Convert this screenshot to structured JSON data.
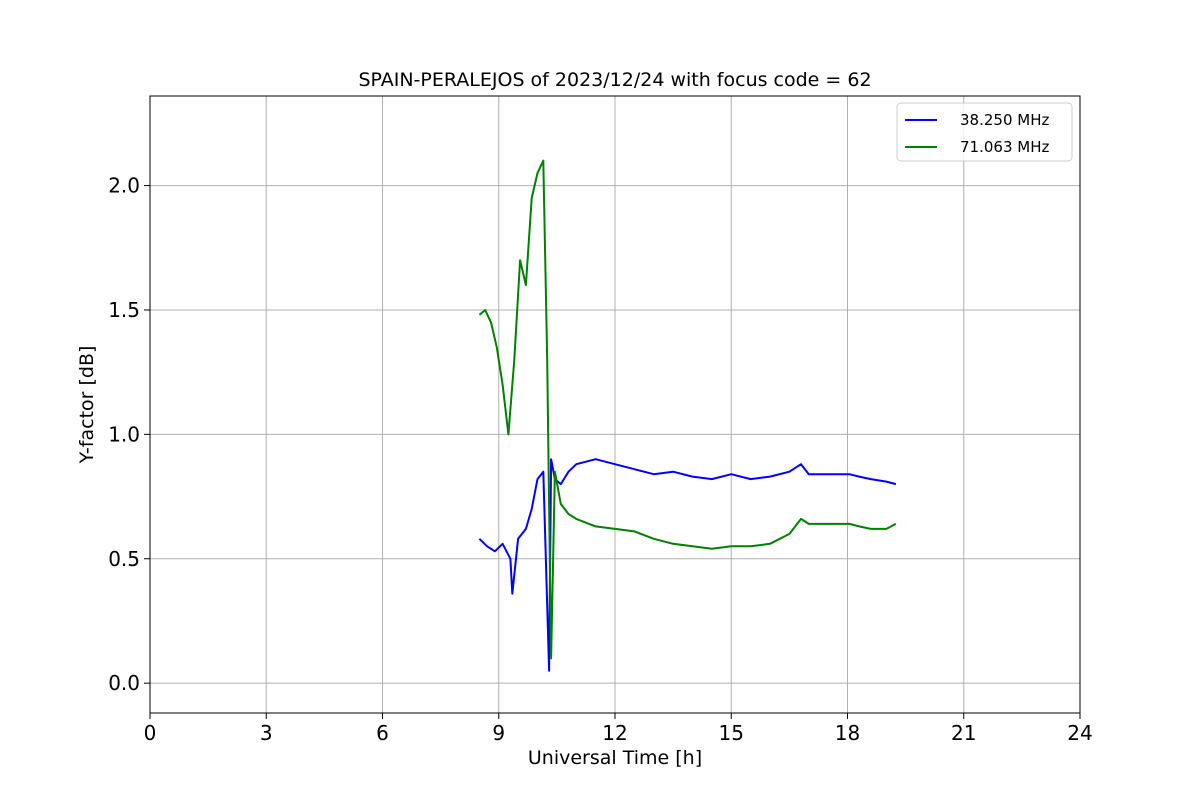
{
  "chart_data": {
    "type": "line",
    "title": "SPAIN-PERALEJOS of 2023/12/24 with focus code = 62",
    "xlabel": "Universal Time [h]",
    "ylabel": "Y-factor [dB]",
    "xlim": [
      0,
      24
    ],
    "ylim": [
      -0.12,
      2.36
    ],
    "xticks": [
      0,
      3,
      6,
      9,
      12,
      15,
      18,
      21,
      24
    ],
    "yticks": [
      0.0,
      0.5,
      1.0,
      1.5,
      2.0
    ],
    "xtick_labels": [
      "0",
      "3",
      "6",
      "9",
      "12",
      "15",
      "18",
      "21",
      "24"
    ],
    "ytick_labels": [
      "0.0",
      "0.5",
      "1.0",
      "1.5",
      "2.0"
    ],
    "grid": true,
    "legend_position": "top-right",
    "series": [
      {
        "name": "38.250 MHz",
        "color": "#0000ff",
        "x": [
          8.5,
          8.7,
          8.9,
          9.1,
          9.3,
          9.35,
          9.5,
          9.7,
          9.85,
          10.0,
          10.15,
          10.3,
          10.35,
          10.45,
          10.6,
          10.8,
          11.0,
          11.5,
          12.0,
          12.5,
          13.0,
          13.5,
          14.0,
          14.5,
          15.0,
          15.5,
          16.0,
          16.5,
          16.8,
          17.0,
          18.05,
          18.3,
          18.6,
          19.0,
          19.25
        ],
        "y": [
          0.58,
          0.55,
          0.53,
          0.56,
          0.5,
          0.36,
          0.58,
          0.62,
          0.7,
          0.82,
          0.85,
          0.05,
          0.9,
          0.82,
          0.8,
          0.85,
          0.88,
          0.9,
          0.88,
          0.86,
          0.84,
          0.85,
          0.83,
          0.82,
          0.84,
          0.82,
          0.83,
          0.85,
          0.88,
          0.84,
          0.84,
          0.83,
          0.82,
          0.81,
          0.8
        ]
      },
      {
        "name": "71.063 MHz",
        "color": "#008000",
        "x": [
          8.5,
          8.65,
          8.8,
          8.95,
          9.1,
          9.25,
          9.4,
          9.55,
          9.7,
          9.85,
          10.0,
          10.15,
          10.25,
          10.35,
          10.45,
          10.6,
          10.8,
          11.0,
          11.5,
          12.0,
          12.5,
          13.0,
          13.5,
          14.0,
          14.5,
          15.0,
          15.5,
          16.0,
          16.5,
          16.8,
          17.0,
          18.05,
          18.3,
          18.6,
          19.0,
          19.25
        ],
        "y": [
          1.48,
          1.5,
          1.45,
          1.35,
          1.2,
          1.0,
          1.3,
          1.7,
          1.6,
          1.95,
          2.05,
          2.1,
          1.3,
          0.1,
          0.85,
          0.72,
          0.68,
          0.66,
          0.63,
          0.62,
          0.61,
          0.58,
          0.56,
          0.55,
          0.54,
          0.55,
          0.55,
          0.56,
          0.6,
          0.66,
          0.64,
          0.64,
          0.63,
          0.62,
          0.62,
          0.64
        ]
      }
    ]
  }
}
